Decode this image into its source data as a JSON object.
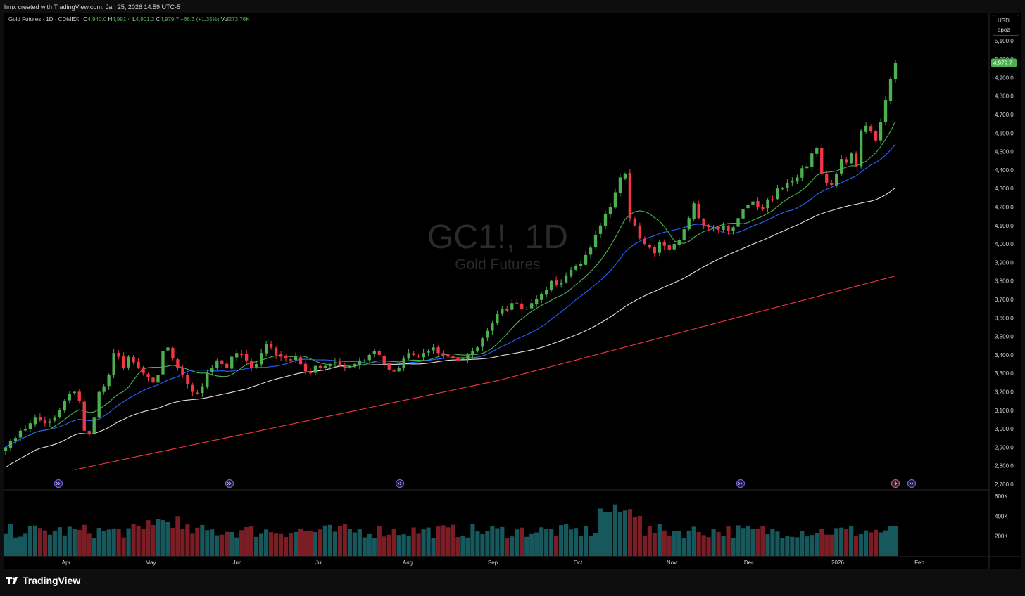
{
  "credit": "hmx created with TradingView.com, Jan 25, 2026 14:59 UTC-5",
  "legend": {
    "symbol": "Gold Futures · 1D · COMEX",
    "open_label": "O",
    "open": "4,940.0",
    "high_label": "H",
    "high": "4,991.4",
    "low_label": "L",
    "low": "4,901.2",
    "close_label": "C",
    "close": "4,979.7",
    "change": "+66.3 (+1.35%)",
    "vol_label": "Vol",
    "vol": "273.76K"
  },
  "currency": "USD",
  "scale_mode": "apoz",
  "watermark": {
    "title": "GC1!, 1D",
    "subtitle": "Gold Futures"
  },
  "brand": "TradingView",
  "colors": {
    "up": "#26a69a",
    "candle_up": "#4caf50",
    "candle_down": "#f23645",
    "ma10": "#4caf50",
    "ma20": "#2962ff",
    "ma50": "#e0e0e0",
    "ma200": "#f23645",
    "vol_up": "#17585c",
    "vol_down": "#7a1d25",
    "last_price_bg": "#4caf50"
  },
  "chart_data": {
    "type": "candlestick",
    "x_labels": [
      "Apr",
      "May",
      "Jun",
      "Jul",
      "Aug",
      "Sep",
      "Oct",
      "Nov",
      "Dec",
      "2026",
      "Feb"
    ],
    "y_ticks": [
      "2,700.0",
      "2,800.0",
      "2,900.0",
      "3,000.0",
      "3,100.0",
      "3,200.0",
      "3,300.0",
      "3,400.0",
      "3,500.0",
      "3,600.0",
      "3,700.0",
      "3,800.0",
      "3,900.0",
      "4,000.0",
      "4,100.0",
      "4,200.0",
      "4,300.0",
      "4,400.0",
      "4,500.0",
      "4,600.0",
      "4,700.0",
      "4,800.0",
      "4,900.0",
      "5,000.0",
      "5,100.0"
    ],
    "y_values": [
      2700,
      2800,
      2900,
      3000,
      3100,
      3200,
      3300,
      3400,
      3500,
      3600,
      3700,
      3800,
      3900,
      4000,
      4100,
      4200,
      4300,
      4400,
      4500,
      4600,
      4700,
      4800,
      4900,
      5000,
      5100
    ],
    "ylim": [
      2680,
      5130
    ],
    "last_price": 4979.7,
    "last_price_label": "4,979.7",
    "closes": [
      2900,
      2935,
      2950,
      2990,
      3000,
      3030,
      3060,
      3045,
      3030,
      3040,
      3060,
      3100,
      3150,
      3190,
      3200,
      3150,
      2990,
      2970,
      3060,
      3200,
      3230,
      3290,
      3410,
      3390,
      3330,
      3390,
      3360,
      3330,
      3300,
      3280,
      3250,
      3290,
      3420,
      3440,
      3380,
      3330,
      3290,
      3240,
      3200,
      3190,
      3230,
      3300,
      3330,
      3370,
      3350,
      3330,
      3390,
      3410,
      3400,
      3370,
      3330,
      3350,
      3410,
      3460,
      3440,
      3400,
      3390,
      3380,
      3370,
      3390,
      3350,
      3310,
      3300,
      3340,
      3330,
      3340,
      3350,
      3360,
      3340,
      3330,
      3340,
      3350,
      3370,
      3370,
      3400,
      3420,
      3400,
      3350,
      3320,
      3310,
      3330,
      3380,
      3410,
      3400,
      3390,
      3410,
      3420,
      3440,
      3410,
      3400,
      3390,
      3380,
      3370,
      3380,
      3400,
      3420,
      3440,
      3490,
      3530,
      3570,
      3620,
      3650,
      3640,
      3680,
      3680,
      3650,
      3650,
      3680,
      3700,
      3730,
      3750,
      3800,
      3780,
      3790,
      3830,
      3860,
      3880,
      3890,
      3940,
      3980,
      4050,
      4100,
      4160,
      4200,
      4280,
      4360,
      4380,
      4140,
      4100,
      4030,
      4000,
      3980,
      3950,
      4010,
      3990,
      3970,
      4000,
      4020,
      4080,
      4140,
      4220,
      4140,
      4100,
      4090,
      4090,
      4080,
      4100,
      4070,
      4090,
      4140,
      4190,
      4210,
      4230,
      4200,
      4190,
      4240,
      4240,
      4300,
      4300,
      4330,
      4340,
      4360,
      4410,
      4420,
      4490,
      4520,
      4380,
      4330,
      4320,
      4380,
      4460,
      4440,
      4490,
      4420,
      4610,
      4640,
      4610,
      4560,
      4660,
      4780,
      4890,
      4979.7
    ],
    "volume_ylim": [
      0,
      650000
    ],
    "volume_ticks": [
      "200K",
      "400K",
      "600K"
    ],
    "volume_tick_values": [
      200000,
      400000,
      600000
    ]
  }
}
